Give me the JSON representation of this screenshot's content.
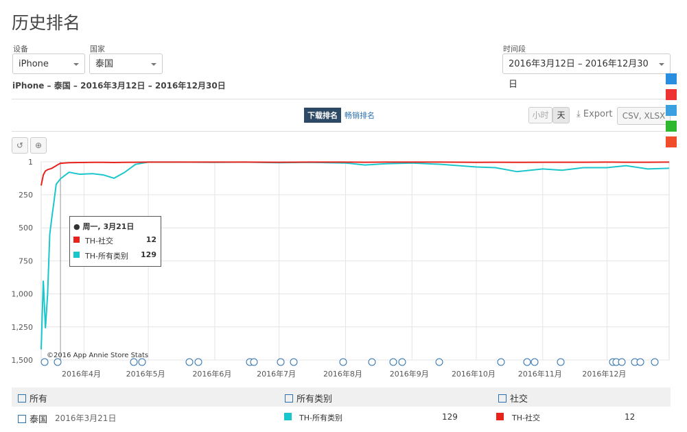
{
  "header": {
    "title": "历史排名"
  },
  "filters": {
    "device_label": "设备",
    "device_value": "iPhone",
    "country_label": "国家",
    "country_value": "泰国",
    "period_label": "时间段",
    "period_value": "2016年3月12日 – 2016年12月30日"
  },
  "subtitle": "iPhone – 泰国 – 2016年3月12日 – 2016年12月30日",
  "tabs": {
    "active": "下载排名",
    "other": "畅销排名"
  },
  "toolbar": {
    "hour": "小时",
    "day": "天",
    "export": "Export",
    "formats": "CSV, XLSX"
  },
  "chart_data": {
    "type": "line",
    "credit": "©2016 App Annie Store Stats",
    "tooltip_title": "周一, 3月21日",
    "x": [
      "2016-03-12",
      "2016-03-13",
      "2016-03-14",
      "2016-03-15",
      "2016-03-16",
      "2016-03-17",
      "2016-03-18",
      "2016-03-19",
      "2016-03-20",
      "2016-03-21",
      "2016-03-25",
      "2016-03-30",
      "2016-04-05",
      "2016-04-10",
      "2016-04-15",
      "2016-04-20",
      "2016-04-25",
      "2016-05-01",
      "2016-05-15",
      "2016-06-01",
      "2016-06-15",
      "2016-07-01",
      "2016-07-15",
      "2016-08-01",
      "2016-08-10",
      "2016-08-20",
      "2016-09-01",
      "2016-09-15",
      "2016-10-01",
      "2016-10-10",
      "2016-10-20",
      "2016-11-01",
      "2016-11-10",
      "2016-11-20",
      "2016-12-01",
      "2016-12-10",
      "2016-12-20",
      "2016-12-30"
    ],
    "series": [
      {
        "name": "TH-社交",
        "color": "#e8231b",
        "values": [
          180,
          100,
          70,
          60,
          55,
          50,
          40,
          30,
          20,
          12,
          8,
          6,
          5,
          5,
          6,
          5,
          4,
          3,
          3,
          3,
          3,
          4,
          3,
          3,
          4,
          3,
          3,
          3,
          5,
          4,
          5,
          4,
          4,
          4,
          3,
          4,
          4,
          3
        ]
      },
      {
        "name": "TH-所有类别",
        "color": "#19c6cc",
        "values": [
          1420,
          900,
          1260,
          1000,
          550,
          420,
          300,
          170,
          150,
          129,
          80,
          95,
          90,
          100,
          125,
          80,
          20,
          3,
          3,
          5,
          3,
          8,
          5,
          10,
          25,
          15,
          10,
          20,
          40,
          45,
          75,
          55,
          65,
          45,
          45,
          30,
          55,
          50
        ]
      }
    ],
    "xlim": [
      "2016-03-12",
      "2016-12-30"
    ],
    "xticks": [
      {
        "value": "2016-04-01",
        "label": "2016年4月"
      },
      {
        "value": "2016-05-01",
        "label": "2016年5月"
      },
      {
        "value": "2016-06-01",
        "label": "2016年6月"
      },
      {
        "value": "2016-07-01",
        "label": "2016年7月"
      },
      {
        "value": "2016-08-01",
        "label": "2016年8月"
      },
      {
        "value": "2016-09-01",
        "label": "2016年9月"
      },
      {
        "value": "2016-10-01",
        "label": "2016年10月"
      },
      {
        "value": "2016-11-01",
        "label": "2016年11月"
      },
      {
        "value": "2016-12-01",
        "label": "2016年12月"
      }
    ],
    "ylim": [
      1500,
      1
    ],
    "yticks": [
      1,
      250,
      500,
      750,
      {
        "value": 1000,
        "label": "1,000"
      },
      {
        "value": 1250,
        "label": "1,250"
      },
      {
        "value": 1500,
        "label": "1,500"
      }
    ],
    "grid": true
  },
  "table": {
    "headers": [
      "所有",
      "所有类别",
      "社交"
    ],
    "row_country": "泰国",
    "row_date": "2016年3月21日"
  }
}
